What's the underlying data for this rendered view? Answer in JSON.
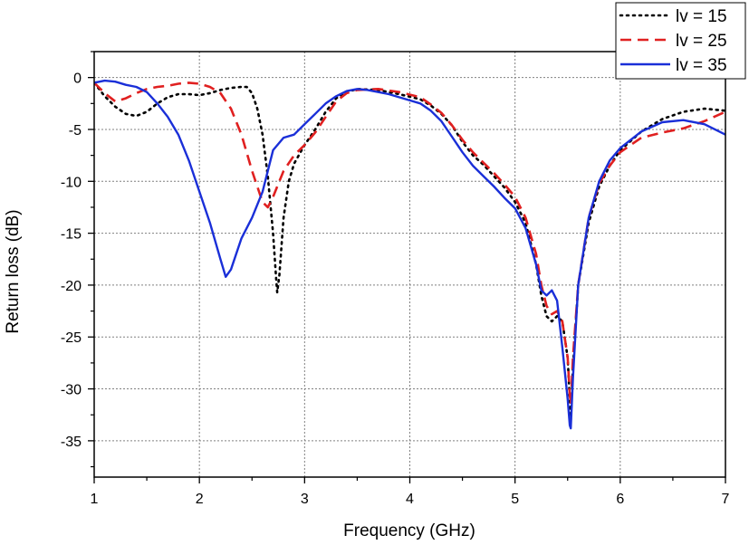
{
  "chart_data": {
    "type": "line",
    "xlabel": "Frequency (GHz)",
    "ylabel": "Return loss (dB)",
    "xlim": [
      1,
      7
    ],
    "ylim": [
      -38.5,
      2.5
    ],
    "xticks": [
      1,
      2,
      3,
      4,
      5,
      6,
      7
    ],
    "yticks": [
      0,
      -5,
      -10,
      -15,
      -20,
      -25,
      -30,
      -35
    ],
    "xtick_labels": [
      "1",
      "2",
      "3",
      "4",
      "5",
      "6",
      "7"
    ],
    "ytick_labels": [
      "0",
      "-5",
      "-10",
      "-15",
      "-20",
      "-25",
      "-30",
      "-35"
    ],
    "grid": true,
    "legend_position": "top-right",
    "series": [
      {
        "name": "lv = 15",
        "color": "#000000",
        "style": "dotted",
        "points": [
          [
            1.0,
            -0.5
          ],
          [
            1.1,
            -1.8
          ],
          [
            1.2,
            -2.8
          ],
          [
            1.3,
            -3.5
          ],
          [
            1.4,
            -3.7
          ],
          [
            1.5,
            -3.3
          ],
          [
            1.6,
            -2.5
          ],
          [
            1.7,
            -1.9
          ],
          [
            1.8,
            -1.6
          ],
          [
            1.9,
            -1.6
          ],
          [
            2.0,
            -1.7
          ],
          [
            2.1,
            -1.5
          ],
          [
            2.2,
            -1.2
          ],
          [
            2.3,
            -1.0
          ],
          [
            2.4,
            -0.9
          ],
          [
            2.45,
            -0.9
          ],
          [
            2.5,
            -1.5
          ],
          [
            2.55,
            -3.0
          ],
          [
            2.6,
            -5.5
          ],
          [
            2.65,
            -9.5
          ],
          [
            2.7,
            -15.0
          ],
          [
            2.73,
            -19.5
          ],
          [
            2.74,
            -20.7
          ],
          [
            2.76,
            -19.0
          ],
          [
            2.8,
            -13.5
          ],
          [
            2.85,
            -10.0
          ],
          [
            2.9,
            -8.3
          ],
          [
            3.0,
            -6.5
          ],
          [
            3.1,
            -5.0
          ],
          [
            3.2,
            -3.3
          ],
          [
            3.3,
            -2.0
          ],
          [
            3.4,
            -1.4
          ],
          [
            3.5,
            -1.1
          ],
          [
            3.7,
            -1.2
          ],
          [
            3.9,
            -1.6
          ],
          [
            4.1,
            -2.1
          ],
          [
            4.2,
            -2.7
          ],
          [
            4.3,
            -3.5
          ],
          [
            4.4,
            -4.6
          ],
          [
            4.5,
            -6.2
          ],
          [
            4.6,
            -7.5
          ],
          [
            4.7,
            -8.4
          ],
          [
            4.8,
            -9.5
          ],
          [
            4.9,
            -10.6
          ],
          [
            5.0,
            -12.0
          ],
          [
            5.1,
            -14.0
          ],
          [
            5.2,
            -18.0
          ],
          [
            5.25,
            -21.0
          ],
          [
            5.3,
            -23.0
          ],
          [
            5.35,
            -23.5
          ],
          [
            5.4,
            -23.0
          ],
          [
            5.45,
            -23.5
          ],
          [
            5.5,
            -27.0
          ],
          [
            5.52,
            -31.0
          ],
          [
            5.53,
            -33.0
          ],
          [
            5.55,
            -28.0
          ],
          [
            5.6,
            -20.0
          ],
          [
            5.7,
            -14.0
          ],
          [
            5.8,
            -10.5
          ],
          [
            5.9,
            -8.5
          ],
          [
            6.0,
            -7.0
          ],
          [
            6.2,
            -5.2
          ],
          [
            6.4,
            -4.0
          ],
          [
            6.6,
            -3.3
          ],
          [
            6.8,
            -3.0
          ],
          [
            7.0,
            -3.2
          ]
        ]
      },
      {
        "name": "lv = 25",
        "color": "#e02020",
        "style": "dashed",
        "points": [
          [
            1.0,
            -0.5
          ],
          [
            1.1,
            -1.5
          ],
          [
            1.2,
            -2.3
          ],
          [
            1.3,
            -2.0
          ],
          [
            1.4,
            -1.5
          ],
          [
            1.5,
            -1.1
          ],
          [
            1.6,
            -0.9
          ],
          [
            1.7,
            -0.8
          ],
          [
            1.8,
            -0.6
          ],
          [
            1.9,
            -0.5
          ],
          [
            2.0,
            -0.6
          ],
          [
            2.1,
            -0.9
          ],
          [
            2.2,
            -1.5
          ],
          [
            2.3,
            -3.0
          ],
          [
            2.4,
            -5.5
          ],
          [
            2.5,
            -9.0
          ],
          [
            2.6,
            -12.0
          ],
          [
            2.65,
            -12.5
          ],
          [
            2.7,
            -11.5
          ],
          [
            2.8,
            -9.0
          ],
          [
            2.9,
            -7.5
          ],
          [
            3.0,
            -6.5
          ],
          [
            3.1,
            -5.3
          ],
          [
            3.2,
            -3.8
          ],
          [
            3.3,
            -2.3
          ],
          [
            3.4,
            -1.5
          ],
          [
            3.5,
            -1.2
          ],
          [
            3.7,
            -1.1
          ],
          [
            3.9,
            -1.4
          ],
          [
            4.1,
            -1.9
          ],
          [
            4.2,
            -2.6
          ],
          [
            4.3,
            -3.4
          ],
          [
            4.4,
            -4.6
          ],
          [
            4.5,
            -6.0
          ],
          [
            4.6,
            -7.2
          ],
          [
            4.7,
            -8.2
          ],
          [
            4.8,
            -9.2
          ],
          [
            4.9,
            -10.3
          ],
          [
            5.0,
            -11.5
          ],
          [
            5.1,
            -13.5
          ],
          [
            5.2,
            -17.0
          ],
          [
            5.25,
            -20.0
          ],
          [
            5.3,
            -22.0
          ],
          [
            5.35,
            -22.8
          ],
          [
            5.4,
            -22.5
          ],
          [
            5.45,
            -23.5
          ],
          [
            5.5,
            -27.0
          ],
          [
            5.52,
            -30.5
          ],
          [
            5.53,
            -31.5
          ],
          [
            5.55,
            -27.0
          ],
          [
            5.6,
            -20.0
          ],
          [
            5.7,
            -13.5
          ],
          [
            5.8,
            -10.2
          ],
          [
            5.9,
            -8.5
          ],
          [
            6.0,
            -7.2
          ],
          [
            6.2,
            -5.8
          ],
          [
            6.4,
            -5.3
          ],
          [
            6.6,
            -4.9
          ],
          [
            6.8,
            -4.2
          ],
          [
            7.0,
            -3.3
          ]
        ]
      },
      {
        "name": "lv = 35",
        "color": "#1a2fd8",
        "style": "solid",
        "points": [
          [
            1.0,
            -0.5
          ],
          [
            1.1,
            -0.3
          ],
          [
            1.2,
            -0.4
          ],
          [
            1.3,
            -0.7
          ],
          [
            1.4,
            -0.9
          ],
          [
            1.5,
            -1.4
          ],
          [
            1.6,
            -2.5
          ],
          [
            1.7,
            -3.8
          ],
          [
            1.8,
            -5.5
          ],
          [
            1.9,
            -8.0
          ],
          [
            2.0,
            -11.0
          ],
          [
            2.1,
            -14.0
          ],
          [
            2.2,
            -17.5
          ],
          [
            2.25,
            -19.2
          ],
          [
            2.3,
            -18.5
          ],
          [
            2.4,
            -15.5
          ],
          [
            2.5,
            -13.5
          ],
          [
            2.6,
            -11.0
          ],
          [
            2.65,
            -9.0
          ],
          [
            2.7,
            -7.0
          ],
          [
            2.8,
            -5.8
          ],
          [
            2.9,
            -5.5
          ],
          [
            3.0,
            -4.5
          ],
          [
            3.1,
            -3.5
          ],
          [
            3.2,
            -2.5
          ],
          [
            3.3,
            -1.8
          ],
          [
            3.4,
            -1.3
          ],
          [
            3.5,
            -1.1
          ],
          [
            3.6,
            -1.2
          ],
          [
            3.8,
            -1.6
          ],
          [
            4.0,
            -2.2
          ],
          [
            4.1,
            -2.5
          ],
          [
            4.2,
            -3.2
          ],
          [
            4.3,
            -4.2
          ],
          [
            4.4,
            -5.7
          ],
          [
            4.5,
            -7.2
          ],
          [
            4.6,
            -8.5
          ],
          [
            4.7,
            -9.5
          ],
          [
            4.8,
            -10.5
          ],
          [
            4.9,
            -11.6
          ],
          [
            5.0,
            -12.6
          ],
          [
            5.1,
            -14.5
          ],
          [
            5.2,
            -18.0
          ],
          [
            5.25,
            -20.5
          ],
          [
            5.3,
            -21.0
          ],
          [
            5.35,
            -20.5
          ],
          [
            5.4,
            -21.5
          ],
          [
            5.45,
            -26.0
          ],
          [
            5.5,
            -31.0
          ],
          [
            5.52,
            -33.5
          ],
          [
            5.53,
            -33.8
          ],
          [
            5.55,
            -29.0
          ],
          [
            5.6,
            -20.0
          ],
          [
            5.7,
            -13.5
          ],
          [
            5.8,
            -10.0
          ],
          [
            5.9,
            -8.0
          ],
          [
            6.0,
            -6.8
          ],
          [
            6.2,
            -5.2
          ],
          [
            6.4,
            -4.3
          ],
          [
            6.6,
            -4.1
          ],
          [
            6.8,
            -4.5
          ],
          [
            7.0,
            -5.5
          ]
        ]
      }
    ]
  }
}
